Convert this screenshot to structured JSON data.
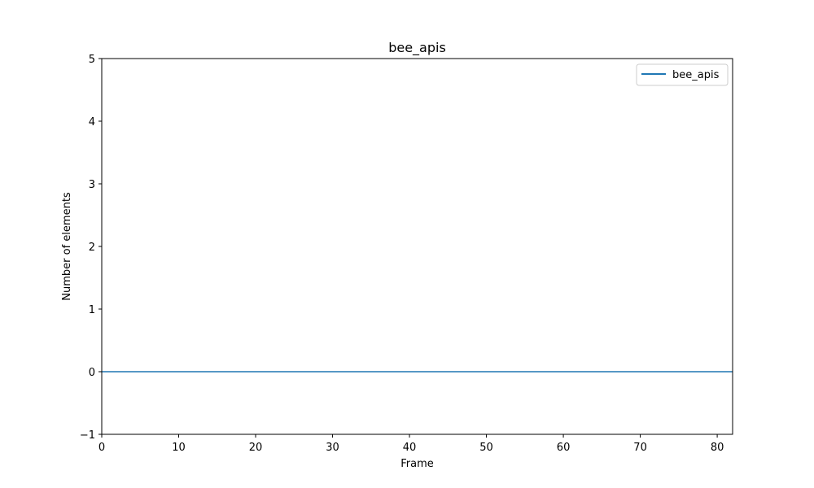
{
  "chart_data": {
    "type": "line",
    "title": "bee_apis",
    "xlabel": "Frame",
    "ylabel": "Number of elements",
    "xlim": [
      0,
      82
    ],
    "ylim": [
      -1,
      5
    ],
    "x_ticks": [
      0,
      10,
      20,
      30,
      40,
      50,
      60,
      70,
      80
    ],
    "y_ticks": [
      -1,
      0,
      1,
      2,
      3,
      4,
      5
    ],
    "x_tick_labels": [
      "0",
      "10",
      "20",
      "30",
      "40",
      "50",
      "60",
      "70",
      "80"
    ],
    "y_tick_labels": [
      "−1",
      "0",
      "1",
      "2",
      "3",
      "4",
      "5"
    ],
    "grid": false,
    "legend": {
      "position": "top-right",
      "entries": [
        "bee_apis"
      ]
    },
    "series": [
      {
        "name": "bee_apis",
        "color": "#1f77b4",
        "x": [
          0,
          82
        ],
        "y": [
          0,
          0
        ]
      }
    ]
  }
}
